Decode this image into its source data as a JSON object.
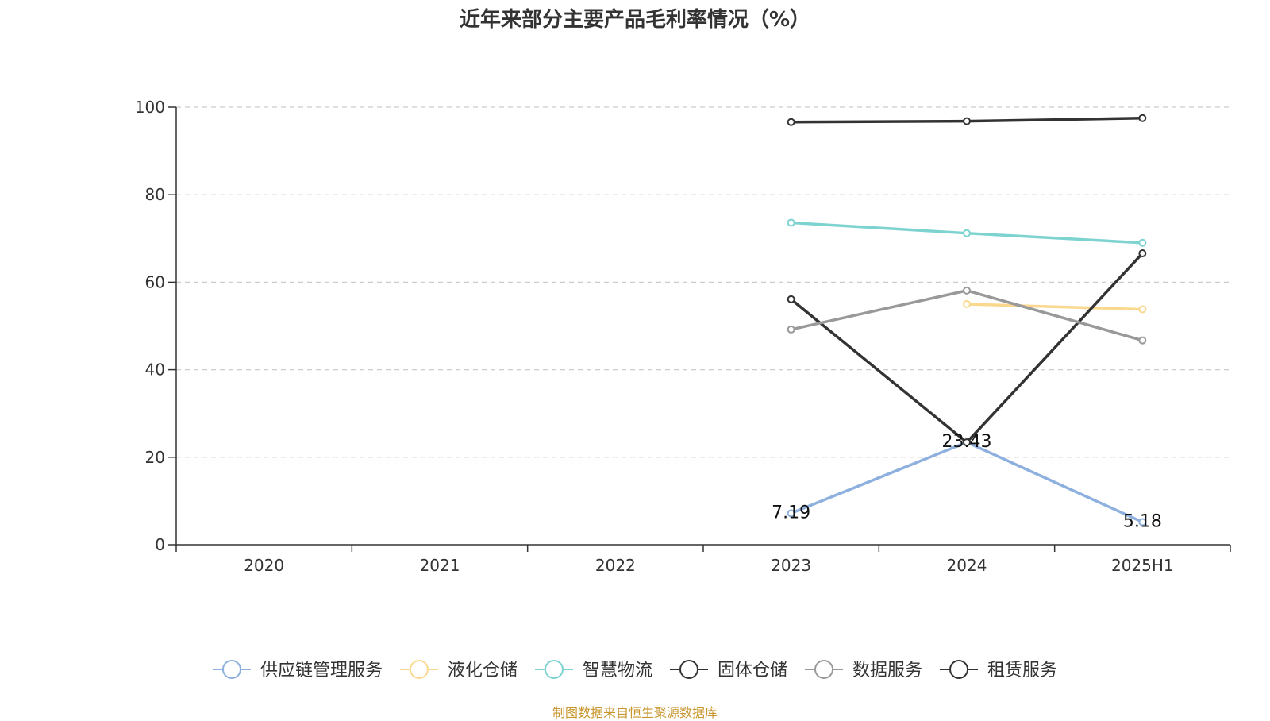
{
  "chart_data": {
    "type": "line",
    "title": "近年来部分主要产品毛利率情况（%）",
    "source_note": "制图数据来自恒生聚源数据库",
    "categories": [
      "2020",
      "2021",
      "2022",
      "2023",
      "2024",
      "2025H1"
    ],
    "ylim": [
      0,
      100
    ],
    "y_ticks": [
      0,
      20,
      40,
      60,
      80,
      100
    ],
    "grid": true,
    "legend_position": "bottom",
    "series": [
      {
        "name": "供应链管理服务",
        "color": "#8eb0de",
        "values": [
          null,
          null,
          null,
          7.19,
          23.43,
          5.18
        ],
        "labels": [
          "",
          "",
          "",
          "7.19",
          "23.43",
          "5.18"
        ]
      },
      {
        "name": "液化仓储",
        "color": "#fad98f",
        "values": [
          null,
          null,
          null,
          null,
          55.0,
          53.8
        ]
      },
      {
        "name": "智慧物流",
        "color": "#7dd3d0",
        "values": [
          null,
          null,
          null,
          73.6,
          71.2,
          69.0
        ]
      },
      {
        "name": "固体仓储",
        "color": "#333333",
        "values": [
          null,
          null,
          null,
          56.1,
          23.4,
          66.6
        ]
      },
      {
        "name": "数据服务",
        "color": "#999999",
        "values": [
          null,
          null,
          null,
          49.2,
          58.1,
          46.7
        ]
      },
      {
        "name": "租赁服务",
        "color": "#333333",
        "values": [
          null,
          null,
          null,
          96.6,
          96.8,
          97.5
        ]
      }
    ]
  }
}
